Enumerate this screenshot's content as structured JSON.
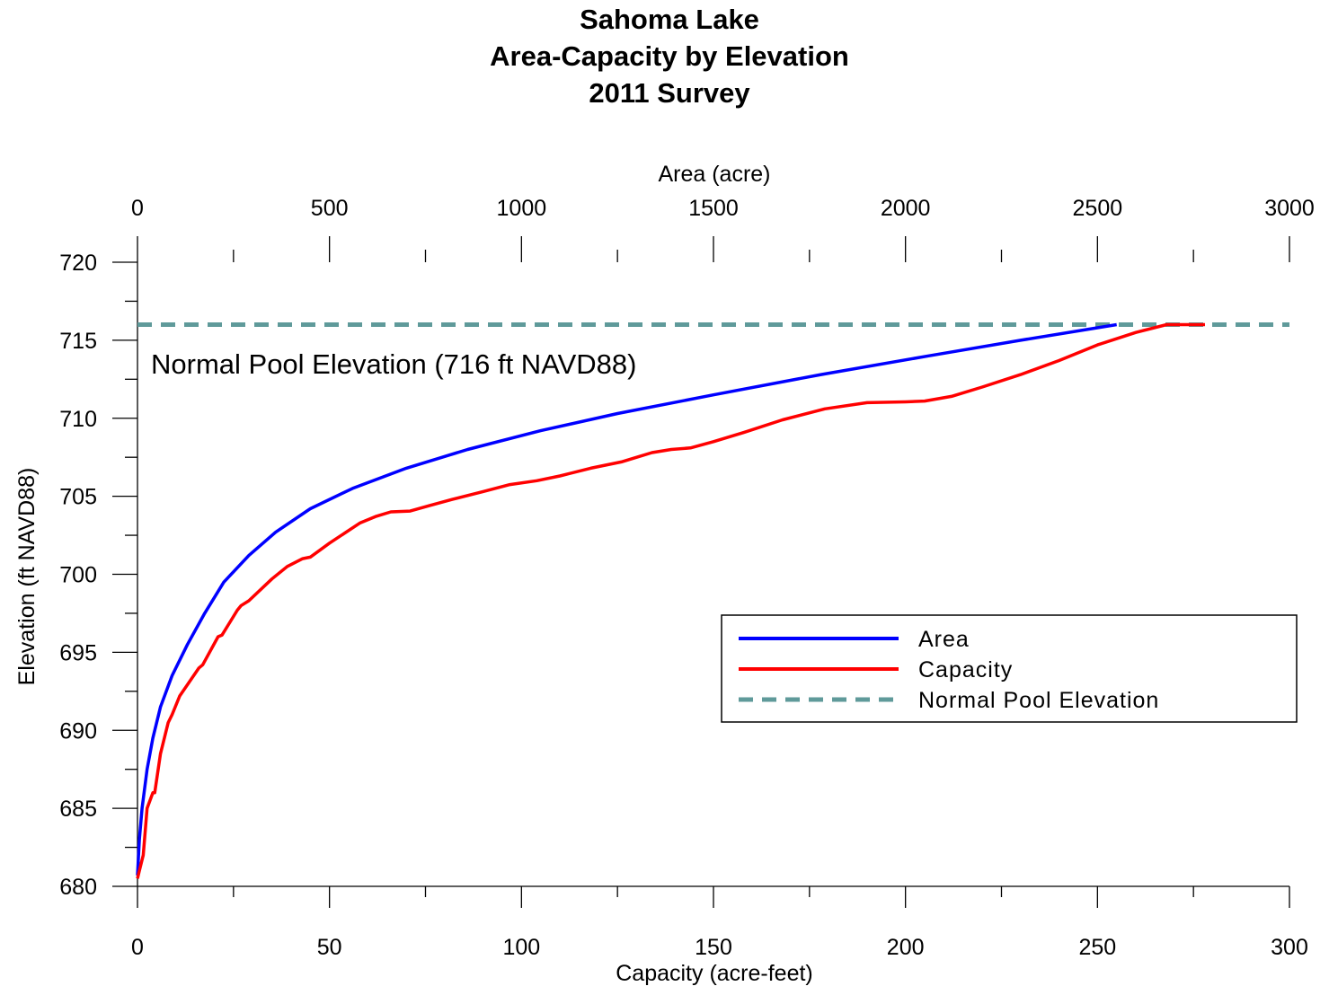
{
  "chart_data": {
    "type": "line",
    "title_lines": [
      "Sahoma Lake",
      "Area-Capacity by Elevation",
      "2011 Survey"
    ],
    "xlabel_bottom": "Capacity (acre-feet)",
    "xlabel_top": "Area (acre)",
    "ylabel": "Elevation (ft NAVD88)",
    "xlim_bottom": [
      0,
      300
    ],
    "xlim_top": [
      0,
      3000
    ],
    "ylim": [
      680,
      720
    ],
    "xticks_bottom": [
      "0",
      "50",
      "100",
      "150",
      "200",
      "250",
      "300"
    ],
    "xticks_top": [
      "0",
      "500",
      "1000",
      "1500",
      "2000",
      "2500",
      "3000"
    ],
    "yticks": [
      "680",
      "685",
      "690",
      "695",
      "700",
      "705",
      "710",
      "715",
      "720"
    ],
    "grid": false,
    "legend_position": "lower-right",
    "annotation": "Normal Pool Elevation (716 ft NAVD88)",
    "series": [
      {
        "name": "Area",
        "axis": "top",
        "color": "#0000ff",
        "x": [
          0,
          5,
          12,
          25,
          40,
          60,
          90,
          130,
          175,
          225,
          290,
          360,
          450,
          560,
          700,
          860,
          1050,
          1250,
          1500,
          1780,
          2060,
          2300,
          2550
        ],
        "y": [
          680.7,
          683,
          685,
          687.5,
          689.5,
          691.5,
          693.5,
          695.5,
          697.5,
          699.5,
          701.2,
          702.7,
          704.2,
          705.5,
          706.8,
          708,
          709.2,
          710.3,
          711.5,
          712.8,
          714,
          715,
          716
        ]
      },
      {
        "name": "Capacity",
        "axis": "bottom",
        "color": "#ff0000",
        "x": [
          0,
          0.5,
          1.5,
          2.5,
          4,
          4.5,
          6,
          8,
          9,
          11,
          16,
          17,
          21,
          22,
          26,
          27,
          29,
          35,
          39,
          43,
          45,
          50,
          58,
          62,
          66,
          71,
          76,
          82,
          90,
          97,
          104,
          110,
          118,
          126,
          134,
          139,
          144,
          150,
          158,
          168,
          179,
          190,
          200,
          205,
          212,
          220,
          230,
          240,
          250,
          260,
          268,
          278
        ],
        "y": [
          680.5,
          681,
          682,
          685,
          686,
          686,
          688.5,
          690.5,
          691,
          692.2,
          694,
          694.2,
          696,
          696.1,
          697.7,
          698,
          698.3,
          699.7,
          700.5,
          701,
          701.1,
          702,
          703.3,
          703.7,
          704,
          704.05,
          704.4,
          704.8,
          705.3,
          705.75,
          706,
          706.3,
          706.8,
          707.2,
          707.8,
          708,
          708.1,
          708.5,
          709.1,
          709.9,
          710.6,
          711,
          711.05,
          711.1,
          711.4,
          712,
          712.8,
          713.7,
          714.7,
          715.5,
          716,
          716
        ]
      },
      {
        "name": "Normal Pool Elevation",
        "axis": "bottom",
        "color": "#5f9a9a",
        "dashed": true,
        "x": [
          0,
          300
        ],
        "y": [
          716,
          716
        ]
      }
    ]
  }
}
